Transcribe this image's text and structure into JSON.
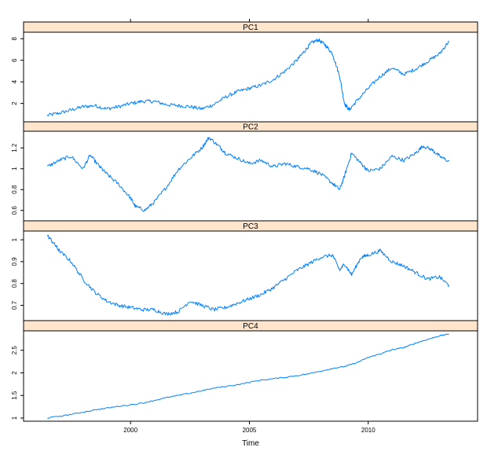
{
  "chart_data": {
    "type": "line",
    "layout": "stacked-panels",
    "xlabel": "Time",
    "x_ticks": [
      2000,
      2005,
      2010
    ],
    "xlim": [
      1995.5,
      2014.6
    ],
    "series_color": "#0080ff",
    "strip_color": "#ffe5cc",
    "panels": [
      {
        "name": "PC1",
        "ylim": [
          0.3,
          8.6
        ],
        "y_ticks": [
          2,
          4,
          6,
          8
        ],
        "x": [
          1996.5,
          1997.0,
          1997.5,
          1998.0,
          1998.5,
          1999.0,
          1999.5,
          2000.0,
          2000.5,
          2001.0,
          2001.5,
          2002.0,
          2002.5,
          2003.0,
          2003.5,
          2004.0,
          2004.5,
          2005.0,
          2005.5,
          2006.0,
          2006.5,
          2007.0,
          2007.3,
          2007.6,
          2007.9,
          2008.2,
          2008.5,
          2008.8,
          2009.0,
          2009.2,
          2009.5,
          2010.0,
          2010.5,
          2011.0,
          2011.5,
          2012.0,
          2012.5,
          2013.0,
          2013.4
        ],
        "y": [
          0.9,
          1.1,
          1.4,
          1.7,
          1.8,
          1.5,
          1.7,
          2.0,
          2.2,
          2.2,
          1.9,
          1.8,
          1.7,
          1.5,
          1.9,
          2.6,
          3.1,
          3.4,
          3.7,
          4.2,
          5.0,
          6.0,
          6.8,
          7.6,
          7.9,
          7.4,
          6.6,
          4.5,
          2.0,
          1.4,
          2.2,
          3.4,
          4.5,
          5.3,
          4.7,
          5.2,
          5.9,
          6.6,
          7.8
        ]
      },
      {
        "name": "PC2",
        "ylim": [
          0.5,
          1.36
        ],
        "y_ticks": [
          0.6,
          0.8,
          1.0,
          1.2
        ],
        "x": [
          1996.5,
          1997.0,
          1997.5,
          1998.0,
          1998.3,
          1998.7,
          1999.0,
          1999.5,
          2000.0,
          2000.2,
          2000.6,
          2001.0,
          2001.5,
          2002.0,
          2002.5,
          2003.0,
          2003.3,
          2003.7,
          2004.0,
          2004.5,
          2005.0,
          2005.5,
          2006.0,
          2006.5,
          2007.0,
          2007.5,
          2008.0,
          2008.5,
          2008.8,
          2009.0,
          2009.3,
          2009.7,
          2010.0,
          2010.5,
          2011.0,
          2011.5,
          2012.0,
          2012.3,
          2012.7,
          2013.0,
          2013.4
        ],
        "y": [
          1.02,
          1.08,
          1.12,
          1.0,
          1.13,
          1.02,
          0.95,
          0.85,
          0.72,
          0.64,
          0.6,
          0.68,
          0.82,
          0.99,
          1.1,
          1.2,
          1.3,
          1.22,
          1.15,
          1.1,
          1.05,
          1.08,
          1.02,
          1.05,
          1.02,
          1.0,
          0.95,
          0.86,
          0.8,
          0.93,
          1.15,
          1.05,
          0.98,
          1.0,
          1.12,
          1.08,
          1.15,
          1.22,
          1.18,
          1.12,
          1.07
        ]
      },
      {
        "name": "PC3",
        "ylim": [
          0.63,
          1.04
        ],
        "y_ticks": [
          0.7,
          0.8,
          0.9,
          1.0
        ],
        "x": [
          1996.5,
          1996.8,
          1997.0,
          1997.5,
          1998.0,
          1998.5,
          1999.0,
          1999.5,
          2000.0,
          2000.5,
          2001.0,
          2001.5,
          2002.0,
          2002.5,
          2003.0,
          2003.5,
          2004.0,
          2004.5,
          2005.0,
          2005.5,
          2006.0,
          2006.5,
          2007.0,
          2007.5,
          2008.0,
          2008.5,
          2008.8,
          2009.0,
          2009.3,
          2009.7,
          2010.0,
          2010.5,
          2011.0,
          2011.5,
          2012.0,
          2012.5,
          2013.0,
          2013.4
        ],
        "y": [
          1.02,
          0.98,
          0.95,
          0.9,
          0.82,
          0.76,
          0.72,
          0.7,
          0.69,
          0.68,
          0.68,
          0.66,
          0.67,
          0.72,
          0.7,
          0.68,
          0.69,
          0.71,
          0.73,
          0.75,
          0.78,
          0.82,
          0.86,
          0.89,
          0.92,
          0.93,
          0.86,
          0.89,
          0.84,
          0.92,
          0.93,
          0.95,
          0.9,
          0.88,
          0.85,
          0.82,
          0.83,
          0.79
        ]
      },
      {
        "name": "PC4",
        "ylim": [
          0.93,
          2.93
        ],
        "y_ticks": [
          1.0,
          1.5,
          2.0,
          2.5
        ],
        "x": [
          1996.5,
          1997.5,
          1998.5,
          1999.5,
          2000.5,
          2001.5,
          2002.5,
          2003.5,
          2004.5,
          2005.5,
          2006.5,
          2007.5,
          2008.5,
          2009.0,
          2009.5,
          2010.0,
          2010.5,
          2011.0,
          2011.5,
          2012.0,
          2012.5,
          2013.0,
          2013.4
        ],
        "y": [
          1.0,
          1.08,
          1.18,
          1.26,
          1.33,
          1.45,
          1.55,
          1.66,
          1.74,
          1.84,
          1.9,
          1.98,
          2.1,
          2.14,
          2.22,
          2.34,
          2.42,
          2.51,
          2.56,
          2.66,
          2.74,
          2.82,
          2.86
        ]
      }
    ]
  }
}
